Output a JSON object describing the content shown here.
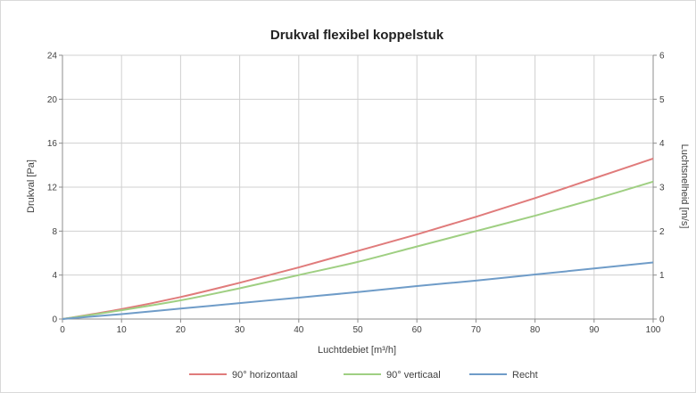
{
  "chart_data": {
    "type": "line",
    "title": "Drukval flexibel koppelstuk",
    "xlabel": "Luchtdebiet [m³/h]",
    "ylabel": "Drukval [Pa]",
    "y2label": "Luchtsnelheid [m/s]",
    "xlim": [
      0,
      100
    ],
    "ylim": [
      0,
      24
    ],
    "y2lim": [
      0,
      6
    ],
    "x_ticks": [
      0,
      10,
      20,
      30,
      40,
      50,
      60,
      70,
      80,
      90,
      100
    ],
    "y_ticks": [
      0,
      4,
      8,
      12,
      16,
      20,
      24
    ],
    "y2_ticks": [
      0,
      1,
      2,
      3,
      4,
      5,
      6
    ],
    "grid": true,
    "legend_position": "bottom",
    "x": [
      0,
      10,
      20,
      30,
      40,
      50,
      60,
      70,
      80,
      90,
      100
    ],
    "series": [
      {
        "name": "90° horizontaal",
        "color": "#e07b7b",
        "values": [
          0,
          0.9,
          2.0,
          3.3,
          4.7,
          6.2,
          7.7,
          9.3,
          11.0,
          12.8,
          14.6
        ]
      },
      {
        "name": "90° verticaal",
        "color": "#9fcf82",
        "values": [
          0,
          0.8,
          1.7,
          2.8,
          4.0,
          5.2,
          6.6,
          8.0,
          9.4,
          10.9,
          12.5
        ]
      },
      {
        "name": "Recht",
        "color": "#6f9cc8",
        "values": [
          0,
          0.45,
          0.95,
          1.45,
          1.95,
          2.45,
          3.0,
          3.5,
          4.05,
          4.6,
          5.15
        ]
      }
    ]
  }
}
